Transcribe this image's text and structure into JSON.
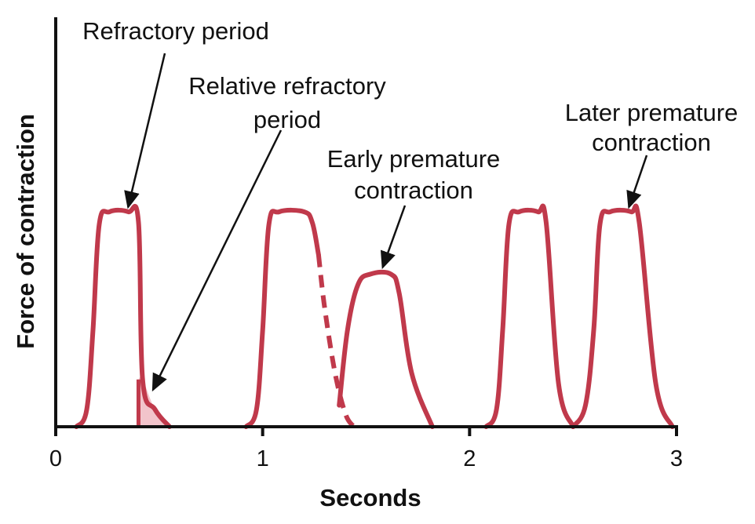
{
  "chart_data": {
    "type": "line",
    "title": "",
    "xlabel": "Seconds",
    "ylabel": "Force of contraction",
    "xlim": [
      0,
      3
    ],
    "ylim": [
      0,
      1
    ],
    "x_ticks": [
      "0",
      "1",
      "2",
      "3"
    ],
    "grid": false,
    "line_color": "#c0394b",
    "shade_color": "#f2c4cb",
    "series": [
      {
        "x": [
          0.1,
          0.15,
          0.18,
          0.21,
          0.26,
          0.35,
          0.4,
          0.42,
          0.48,
          0.55
        ],
        "y": [
          0,
          0.08,
          0.45,
          0.94,
          1.0,
          1.0,
          0.95,
          0.22,
          0.08,
          0
        ]
      },
      {
        "x": [
          0.92,
          0.97,
          1.0,
          1.03,
          1.08,
          1.2,
          1.24,
          1.27
        ],
        "y": [
          0,
          0.08,
          0.45,
          0.94,
          1.0,
          1.0,
          0.95,
          0.8
        ]
      },
      {
        "x": [
          1.27,
          1.3,
          1.35,
          1.4,
          1.44
        ],
        "y": [
          0.8,
          0.55,
          0.25,
          0.06,
          0
        ],
        "style": "dashed"
      },
      {
        "x": [
          1.37,
          1.41,
          1.46,
          1.52,
          1.62,
          1.66,
          1.72,
          1.82
        ],
        "y": [
          0.1,
          0.45,
          0.66,
          0.71,
          0.71,
          0.62,
          0.25,
          0
        ]
      },
      {
        "x": [
          2.08,
          2.13,
          2.16,
          2.19,
          2.24,
          2.33,
          2.37,
          2.43,
          2.5
        ],
        "y": [
          0,
          0.08,
          0.45,
          0.94,
          1.0,
          1.0,
          0.95,
          0.2,
          0
        ]
      },
      {
        "x": [
          2.5,
          2.56,
          2.6,
          2.63,
          2.68,
          2.78,
          2.82,
          2.9,
          2.98
        ],
        "y": [
          0,
          0.1,
          0.45,
          0.94,
          1.0,
          1.0,
          0.95,
          0.2,
          0
        ]
      }
    ],
    "shaded_region": {
      "x": [
        0.4,
        0.42,
        0.48,
        0.55
      ],
      "y": [
        0.22,
        0.22,
        0.08,
        0
      ],
      "x_start": 0.4
    },
    "annotations": [
      {
        "lines": [
          "Refractory period"
        ],
        "x": 0.35,
        "y": 1.0
      },
      {
        "lines": [
          "Relative refractory",
          "period"
        ],
        "x": 0.47,
        "y": 0.15
      },
      {
        "lines": [
          "Early premature",
          "contraction"
        ],
        "x": 1.58,
        "y": 0.72
      },
      {
        "lines": [
          "Later premature",
          "contraction"
        ],
        "x": 2.77,
        "y": 1.0
      }
    ]
  }
}
